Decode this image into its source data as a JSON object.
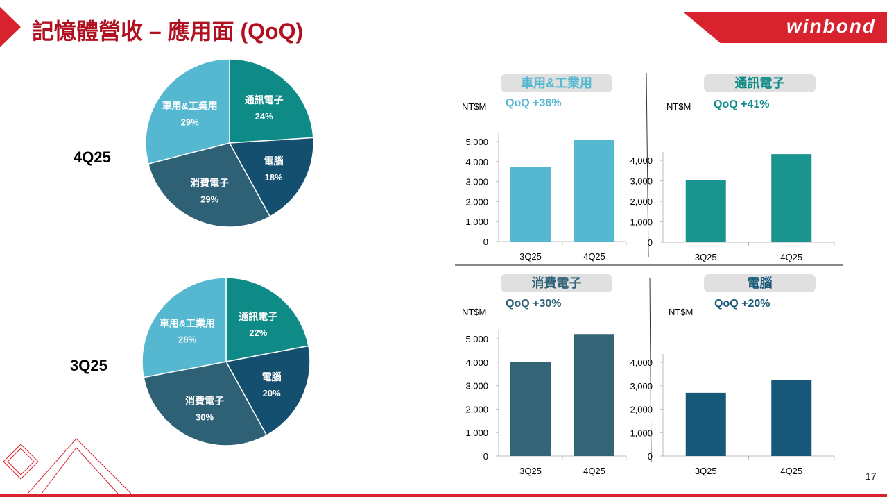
{
  "title": "記憶體營收 – 應用面 (QoQ)",
  "logo": "winbond",
  "page_number": "17",
  "colors": {
    "auto": "#55b8d0",
    "comm": "#1a948f",
    "consumer": "#336577",
    "pc": "#175778",
    "title": "#b01020",
    "accent": "#d8222e"
  },
  "chart_data": [
    {
      "type": "pie",
      "title": "4Q25",
      "slices": [
        {
          "label": "通訊電子",
          "value": 24,
          "text": "24%",
          "color": "#0e8a87"
        },
        {
          "label": "電腦",
          "value": 18,
          "text": "18%",
          "color": "#154f6f"
        },
        {
          "label": "消費電子",
          "value": 29,
          "text": "29%",
          "color": "#2f6176"
        },
        {
          "label": "車用&工業用",
          "value": 29,
          "text": "29%",
          "color": "#55b8d0"
        }
      ]
    },
    {
      "type": "pie",
      "title": "3Q25",
      "slices": [
        {
          "label": "通訊電子",
          "value": 22,
          "text": "22%",
          "color": "#0e8a87"
        },
        {
          "label": "電腦",
          "value": 20,
          "text": "20%",
          "color": "#154f6f"
        },
        {
          "label": "消費電子",
          "value": 30,
          "text": "30%",
          "color": "#2f6176"
        },
        {
          "label": "車用&工業用",
          "value": 28,
          "text": "28%",
          "color": "#55b8d0"
        }
      ]
    },
    {
      "type": "bar",
      "title": "車用&工業用",
      "qoq": "QoQ +36%",
      "ylabel": "NT$M",
      "categories": [
        "3Q25",
        "4Q25"
      ],
      "values": [
        3750,
        5100
      ],
      "ylim": [
        0,
        5000
      ],
      "yticks": [
        "0",
        "1,000",
        "2,000",
        "3,000",
        "4,000",
        "5,000"
      ],
      "color": "#55b8d0",
      "title_color": "#55b8d0"
    },
    {
      "type": "bar",
      "title": "通訊電子",
      "qoq": "QoQ +41%",
      "ylabel": "NT$M",
      "categories": [
        "3Q25",
        "4Q25"
      ],
      "values": [
        3050,
        4300
      ],
      "ylim": [
        0,
        4000
      ],
      "yticks": [
        "0",
        "1,000",
        "2,000",
        "3,000",
        "4,000"
      ],
      "color": "#1a948f",
      "title_color": "#0e8a87"
    },
    {
      "type": "bar",
      "title": "消費電子",
      "qoq": "QoQ +30%",
      "ylabel": "NT$M",
      "categories": [
        "3Q25",
        "4Q25"
      ],
      "values": [
        4000,
        5200
      ],
      "ylim": [
        0,
        5000
      ],
      "yticks": [
        "0",
        "1,000",
        "2,000",
        "3,000",
        "4,000",
        "5,000"
      ],
      "color": "#336577",
      "title_color": "#2f6176"
    },
    {
      "type": "bar",
      "title": "電腦",
      "qoq": "QoQ +20%",
      "ylabel": "NT$M",
      "categories": [
        "3Q25",
        "4Q25"
      ],
      "values": [
        2700,
        3250
      ],
      "ylim": [
        0,
        4000
      ],
      "yticks": [
        "0",
        "1,000",
        "2,000",
        "3,000",
        "4,000"
      ],
      "color": "#175778",
      "title_color": "#175778"
    }
  ]
}
